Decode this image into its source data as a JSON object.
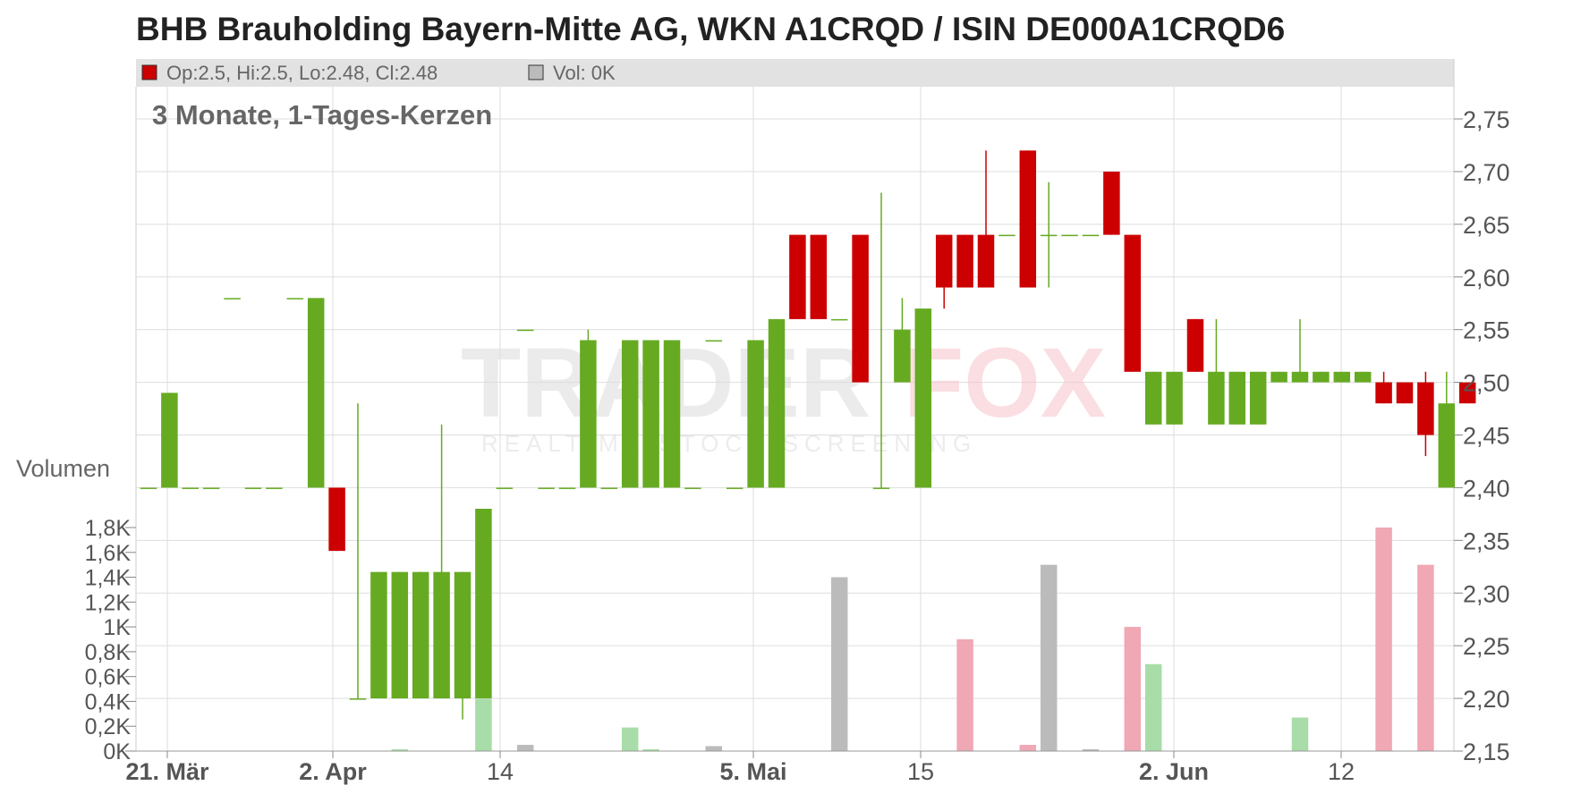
{
  "title": "BHB Brauholding Bayern-Mitte AG, WKN A1CRQD / ISIN DE000A1CRQD6",
  "legend": {
    "price_text": "Op:2.5, Hi:2.5, Lo:2.48, Cl:2.48",
    "volume_text": "Vol: 0K"
  },
  "subtitle": "3 Monate, 1-Tages-Kerzen",
  "volume_axis_label": "Volumen",
  "watermark": {
    "brand_left": "TRADER",
    "brand_right": "FOX",
    "tagline": "REALTIME STOCK SCREENING"
  },
  "colors": {
    "up": "#66aa22",
    "down": "#cc0000",
    "vol_up": "#a8dca8",
    "vol_down": "#f0a8b4",
    "vol_neutral": "#bbbbbb",
    "grid": "#dddddd",
    "legend_bg": "#e2e2e2"
  },
  "chart_data": {
    "type": "candlestick",
    "x_tick_labels": [
      "21. Mär",
      "2. Apr",
      "14",
      "5. Mai",
      "15",
      "2. Jun",
      "12"
    ],
    "bold_x_ticks": [
      "21. Mär",
      "2. Apr",
      "5. Mai",
      "2. Jun"
    ],
    "price_axis": {
      "range": [
        2.15,
        2.78
      ],
      "ticks": [
        2.15,
        2.2,
        2.25,
        2.3,
        2.35,
        2.4,
        2.45,
        2.5,
        2.55,
        2.6,
        2.65,
        2.7,
        2.75
      ],
      "tick_labels": [
        "2,15",
        "2,20",
        "2,25",
        "2,30",
        "2,35",
        "2,40",
        "2,45",
        "2,50",
        "2,55",
        "2,60",
        "2,65",
        "2,70",
        "2,75"
      ]
    },
    "volume_axis": {
      "range": [
        0,
        1950
      ],
      "ticks": [
        0,
        200,
        400,
        600,
        800,
        1000,
        1200,
        1400,
        1600,
        1800
      ],
      "tick_labels": [
        "0K",
        "0,2K",
        "0,4K",
        "0,6K",
        "0,8K",
        "1K",
        "1,2K",
        "1,4K",
        "1,6K",
        "1,8K"
      ]
    },
    "candles": [
      {
        "o": 2.4,
        "h": 2.4,
        "l": 2.4,
        "c": 2.4,
        "v": 0
      },
      {
        "o": 2.4,
        "h": 2.49,
        "l": 2.4,
        "c": 2.49,
        "v": 0
      },
      {
        "o": 2.4,
        "h": 2.4,
        "l": 2.4,
        "c": 2.4,
        "v": 0
      },
      {
        "o": 2.4,
        "h": 2.4,
        "l": 2.4,
        "c": 2.4,
        "v": 0
      },
      {
        "o": 2.58,
        "h": 2.58,
        "l": 2.58,
        "c": 2.58,
        "v": 0
      },
      {
        "o": 2.4,
        "h": 2.4,
        "l": 2.4,
        "c": 2.4,
        "v": 0
      },
      {
        "o": 2.4,
        "h": 2.4,
        "l": 2.4,
        "c": 2.4,
        "v": 0
      },
      {
        "o": 2.58,
        "h": 2.58,
        "l": 2.58,
        "c": 2.58,
        "v": 0
      },
      {
        "o": 2.4,
        "h": 2.58,
        "l": 2.4,
        "c": 2.58,
        "v": 0
      },
      {
        "o": 2.4,
        "h": 2.4,
        "l": 2.34,
        "c": 2.34,
        "v": 0
      },
      {
        "o": 2.2,
        "h": 2.48,
        "l": 2.2,
        "c": 2.2,
        "v": 0
      },
      {
        "o": 2.2,
        "h": 2.32,
        "l": 2.2,
        "c": 2.32,
        "v": 0
      },
      {
        "o": 2.2,
        "h": 2.32,
        "l": 2.2,
        "c": 2.32,
        "v": 15
      },
      {
        "o": 2.2,
        "h": 2.32,
        "l": 2.2,
        "c": 2.32,
        "v": 0
      },
      {
        "o": 2.2,
        "h": 2.46,
        "l": 2.2,
        "c": 2.32,
        "v": 0
      },
      {
        "o": 2.2,
        "h": 2.32,
        "l": 2.18,
        "c": 2.32,
        "v": 0
      },
      {
        "o": 2.2,
        "h": 2.38,
        "l": 2.2,
        "c": 2.38,
        "v": 420
      },
      {
        "o": 2.4,
        "h": 2.4,
        "l": 2.4,
        "c": 2.4,
        "v": 0
      },
      {
        "o": 2.55,
        "h": 2.55,
        "l": 2.55,
        "c": 2.55,
        "v": 50
      },
      {
        "o": 2.4,
        "h": 2.4,
        "l": 2.4,
        "c": 2.4,
        "v": 0
      },
      {
        "o": 2.4,
        "h": 2.4,
        "l": 2.4,
        "c": 2.4,
        "v": 0
      },
      {
        "o": 2.4,
        "h": 2.55,
        "l": 2.4,
        "c": 2.54,
        "v": 0
      },
      {
        "o": 2.4,
        "h": 2.4,
        "l": 2.4,
        "c": 2.4,
        "v": 0
      },
      {
        "o": 2.4,
        "h": 2.54,
        "l": 2.4,
        "c": 2.54,
        "v": 190
      },
      {
        "o": 2.4,
        "h": 2.54,
        "l": 2.4,
        "c": 2.54,
        "v": 15
      },
      {
        "o": 2.4,
        "h": 2.54,
        "l": 2.4,
        "c": 2.54,
        "v": 0
      },
      {
        "o": 2.4,
        "h": 2.4,
        "l": 2.4,
        "c": 2.4,
        "v": 0
      },
      {
        "o": 2.54,
        "h": 2.54,
        "l": 2.54,
        "c": 2.54,
        "v": 40
      },
      {
        "o": 2.4,
        "h": 2.4,
        "l": 2.4,
        "c": 2.4,
        "v": 0
      },
      {
        "o": 2.4,
        "h": 2.54,
        "l": 2.4,
        "c": 2.54,
        "v": 0
      },
      {
        "o": 2.4,
        "h": 2.56,
        "l": 2.4,
        "c": 2.56,
        "v": 0
      },
      {
        "o": 2.64,
        "h": 2.64,
        "l": 2.56,
        "c": 2.56,
        "v": 0
      },
      {
        "o": 2.64,
        "h": 2.64,
        "l": 2.56,
        "c": 2.56,
        "v": 0
      },
      {
        "o": 2.56,
        "h": 2.56,
        "l": 2.56,
        "c": 2.56,
        "v": 1400
      },
      {
        "o": 2.64,
        "h": 2.64,
        "l": 2.5,
        "c": 2.5,
        "v": 0
      },
      {
        "o": 2.4,
        "h": 2.68,
        "l": 2.4,
        "c": 2.4,
        "v": 0
      },
      {
        "o": 2.5,
        "h": 2.58,
        "l": 2.5,
        "c": 2.55,
        "v": 0
      },
      {
        "o": 2.4,
        "h": 2.57,
        "l": 2.4,
        "c": 2.57,
        "v": 0
      },
      {
        "o": 2.64,
        "h": 2.64,
        "l": 2.57,
        "c": 2.59,
        "v": 0
      },
      {
        "o": 2.64,
        "h": 2.64,
        "l": 2.59,
        "c": 2.59,
        "v": 900
      },
      {
        "o": 2.64,
        "h": 2.72,
        "l": 2.59,
        "c": 2.59,
        "v": 0
      },
      {
        "o": 2.64,
        "h": 2.64,
        "l": 2.64,
        "c": 2.64,
        "v": 0
      },
      {
        "o": 2.72,
        "h": 2.72,
        "l": 2.59,
        "c": 2.59,
        "v": 50
      },
      {
        "o": 2.64,
        "h": 2.69,
        "l": 2.59,
        "c": 2.64,
        "v": 1500
      },
      {
        "o": 2.64,
        "h": 2.64,
        "l": 2.64,
        "c": 2.64,
        "v": 0
      },
      {
        "o": 2.64,
        "h": 2.64,
        "l": 2.64,
        "c": 2.64,
        "v": 15
      },
      {
        "o": 2.7,
        "h": 2.7,
        "l": 2.64,
        "c": 2.64,
        "v": 0
      },
      {
        "o": 2.64,
        "h": 2.64,
        "l": 2.51,
        "c": 2.51,
        "v": 1000
      },
      {
        "o": 2.46,
        "h": 2.51,
        "l": 2.46,
        "c": 2.51,
        "v": 700
      },
      {
        "o": 2.46,
        "h": 2.51,
        "l": 2.46,
        "c": 2.51,
        "v": 0
      },
      {
        "o": 2.56,
        "h": 2.56,
        "l": 2.51,
        "c": 2.51,
        "v": 0
      },
      {
        "o": 2.46,
        "h": 2.56,
        "l": 2.46,
        "c": 2.51,
        "v": 0
      },
      {
        "o": 2.46,
        "h": 2.51,
        "l": 2.46,
        "c": 2.51,
        "v": 0
      },
      {
        "o": 2.46,
        "h": 2.51,
        "l": 2.46,
        "c": 2.51,
        "v": 0
      },
      {
        "o": 2.5,
        "h": 2.51,
        "l": 2.5,
        "c": 2.51,
        "v": 0
      },
      {
        "o": 2.5,
        "h": 2.56,
        "l": 2.5,
        "c": 2.51,
        "v": 270
      },
      {
        "o": 2.5,
        "h": 2.51,
        "l": 2.5,
        "c": 2.51,
        "v": 0
      },
      {
        "o": 2.5,
        "h": 2.51,
        "l": 2.5,
        "c": 2.51,
        "v": 0
      },
      {
        "o": 2.5,
        "h": 2.51,
        "l": 2.5,
        "c": 2.51,
        "v": 0
      },
      {
        "o": 2.5,
        "h": 2.51,
        "l": 2.48,
        "c": 2.48,
        "v": 1800
      },
      {
        "o": 2.5,
        "h": 2.5,
        "l": 2.48,
        "c": 2.48,
        "v": 0
      },
      {
        "o": 2.5,
        "h": 2.51,
        "l": 2.43,
        "c": 2.45,
        "v": 1500
      },
      {
        "o": 2.4,
        "h": 2.51,
        "l": 2.4,
        "c": 2.48,
        "v": 0
      },
      {
        "o": 2.5,
        "h": 2.5,
        "l": 2.48,
        "c": 2.48,
        "v": 0
      }
    ]
  }
}
